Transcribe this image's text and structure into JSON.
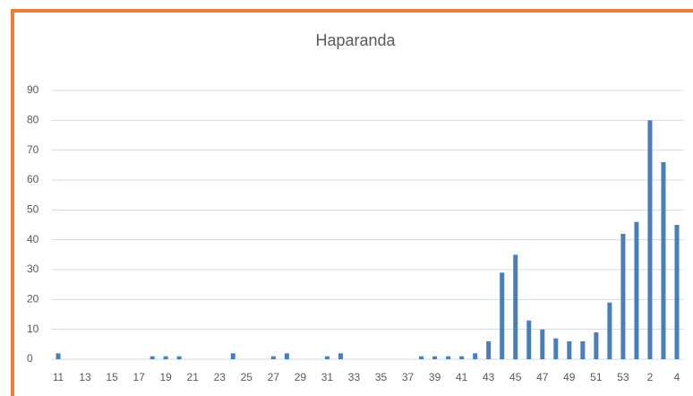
{
  "chart_data": {
    "type": "bar",
    "title": "Haparanda",
    "categories": [
      "11",
      null,
      "13",
      null,
      "15",
      null,
      "17",
      null,
      "19",
      null,
      "21",
      null,
      "23",
      null,
      "25",
      null,
      "27",
      null,
      "29",
      null,
      "31",
      null,
      "33",
      null,
      "35",
      null,
      "37",
      null,
      "39",
      null,
      "41",
      null,
      "43",
      null,
      "45",
      null,
      "47",
      null,
      "49",
      null,
      "51",
      null,
      "53",
      null,
      "2",
      null,
      "4"
    ],
    "values": [
      2,
      0,
      0,
      0,
      0,
      0,
      0,
      1,
      1,
      1,
      0,
      0,
      0,
      2,
      0,
      0,
      1,
      2,
      0,
      0,
      1,
      2,
      0,
      0,
      0,
      0,
      0,
      1,
      1,
      1,
      1,
      2,
      6,
      29,
      35,
      13,
      10,
      7,
      6,
      6,
      9,
      19,
      42,
      46,
      80,
      66,
      45
    ],
    "color": "#4a7ebb",
    "ylim": [
      0,
      90
    ],
    "yticks": [
      0,
      10,
      20,
      30,
      40,
      50,
      60,
      70,
      80,
      90
    ],
    "grid": true
  }
}
